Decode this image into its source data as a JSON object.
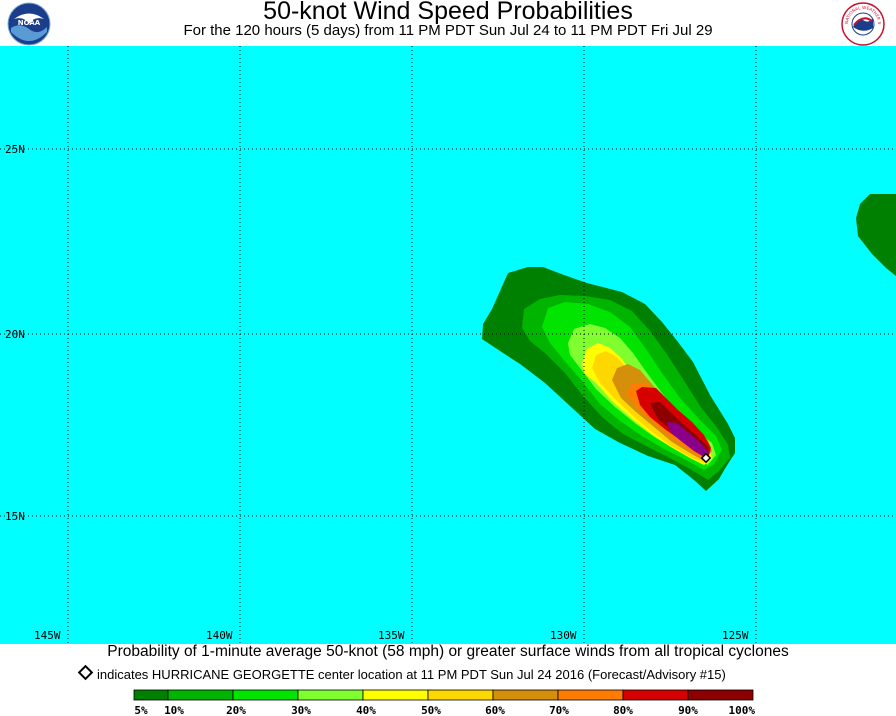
{
  "title": "50-knot Wind Speed Probabilities",
  "subtitle": "For the 120 hours (5 days) from 11 PM PDT Sun Jul 24 to 11 PM PDT Fri Jul 29",
  "logos": {
    "left": "noaa-logo",
    "left_text": "NOAA",
    "right": "nws-logo",
    "right_text": "NATIONAL WEATHER SERVICE"
  },
  "map": {
    "ocean_color": "#00ffff",
    "lat_labels": [
      "25N",
      "20N",
      "15N"
    ],
    "lon_labels": [
      "145W",
      "140W",
      "135W",
      "130W",
      "125W"
    ]
  },
  "storm": {
    "name": "HURRICANE GEORGETTE",
    "marker": "diamond-icon"
  },
  "caption": "Probability of 1-minute average 50-knot (58 mph) or greater surface winds from all tropical cyclones",
  "note": "indicates HURRICANE GEORGETTE center location at 11 PM PDT Sun Jul 24 2016 (Forecast/Advisory #15)",
  "legend": {
    "colors": [
      "#008000",
      "#00b400",
      "#00e400",
      "#80ff30",
      "#ffff00",
      "#ffd700",
      "#d4900a",
      "#ff7c00",
      "#d60000",
      "#8c0000",
      "#8b008b"
    ],
    "labels": [
      "5%",
      "10%",
      "20%",
      "30%",
      "40%",
      "50%",
      "60%",
      "70%",
      "80%",
      "90%",
      "100%"
    ]
  }
}
